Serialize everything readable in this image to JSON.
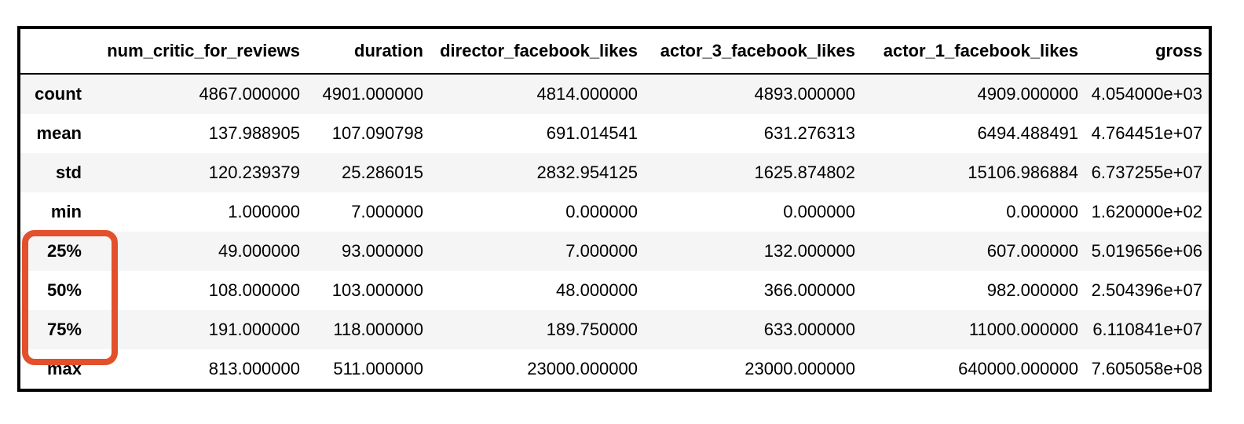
{
  "chart_data": {
    "type": "table",
    "description": "pandas DataFrame describe() summary statistics table",
    "columns": [
      "",
      "num_critic_for_reviews",
      "duration",
      "director_facebook_likes",
      "actor_3_facebook_likes",
      "actor_1_facebook_likes",
      "gross"
    ],
    "rows": [
      {
        "label": "count",
        "values": [
          "4867.000000",
          "4901.000000",
          "4814.000000",
          "4893.000000",
          "4909.000000",
          "4.054000e+03"
        ]
      },
      {
        "label": "mean",
        "values": [
          "137.988905",
          "107.090798",
          "691.014541",
          "631.276313",
          "6494.488491",
          "4.764451e+07"
        ]
      },
      {
        "label": "std",
        "values": [
          "120.239379",
          "25.286015",
          "2832.954125",
          "1625.874802",
          "15106.986884",
          "6.737255e+07"
        ]
      },
      {
        "label": "min",
        "values": [
          "1.000000",
          "7.000000",
          "0.000000",
          "0.000000",
          "0.000000",
          "1.620000e+02"
        ]
      },
      {
        "label": "25%",
        "values": [
          "49.000000",
          "93.000000",
          "7.000000",
          "132.000000",
          "607.000000",
          "5.019656e+06"
        ]
      },
      {
        "label": "50%",
        "values": [
          "108.000000",
          "103.000000",
          "48.000000",
          "366.000000",
          "982.000000",
          "2.504396e+07"
        ]
      },
      {
        "label": "75%",
        "values": [
          "191.000000",
          "118.000000",
          "189.750000",
          "633.000000",
          "11000.000000",
          "6.110841e+07"
        ]
      },
      {
        "label": "max",
        "values": [
          "813.000000",
          "511.000000",
          "23000.000000",
          "23000.000000",
          "640000.000000",
          "7.605058e+08"
        ]
      }
    ]
  },
  "annotation": {
    "shape": "rounded-rectangle",
    "color": "#e2502c",
    "highlighted_row_labels": [
      "25%",
      "50%",
      "75%"
    ]
  },
  "colors": {
    "background": "#ffffff",
    "table_border": "#000000",
    "row_stripe": "#f5f5f5",
    "text": "#000000",
    "annotation_accent": "#e2502c"
  }
}
